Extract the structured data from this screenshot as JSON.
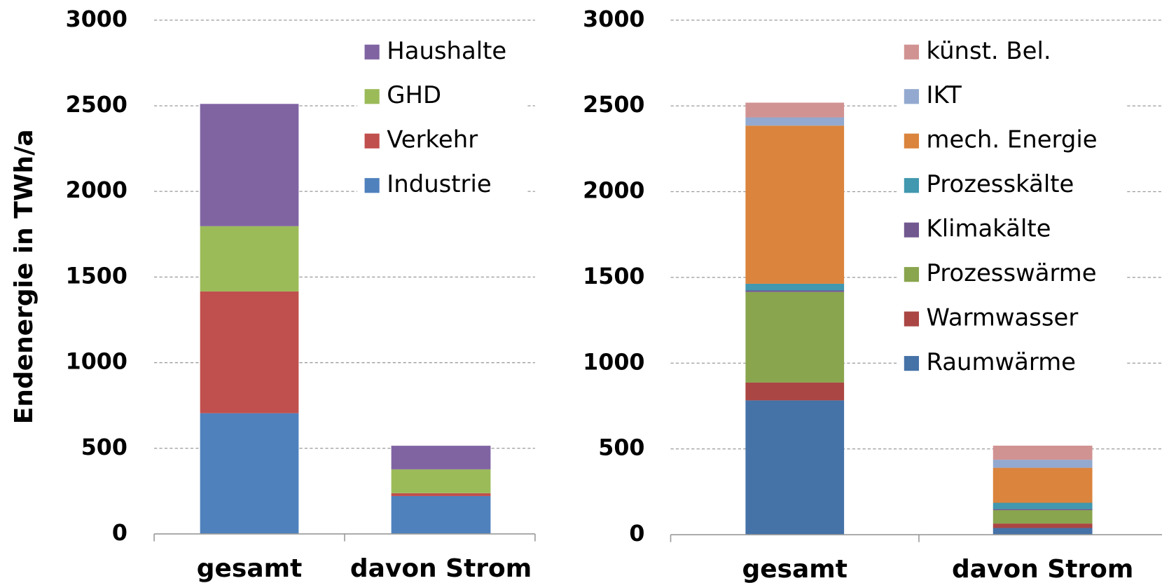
{
  "chart_data": [
    {
      "type": "bar",
      "stacked": true,
      "y_label": "Endenergie in TWh/a",
      "categories": [
        "gesamt",
        "davon Strom"
      ],
      "series": [
        {
          "name": "Industrie",
          "color": "#4f81bd",
          "values": [
            705,
            221
          ]
        },
        {
          "name": "Verkehr",
          "color": "#c0504d",
          "values": [
            711,
            17
          ]
        },
        {
          "name": "GHD",
          "color": "#9bbb59",
          "values": [
            381,
            139
          ]
        },
        {
          "name": "Haushalte",
          "color": "#8064a2",
          "values": [
            714,
            138
          ]
        }
      ],
      "ylim": [
        0,
        3000
      ],
      "yticks": [
        0,
        500,
        1000,
        1500,
        2000,
        2500,
        3000
      ],
      "grid": true,
      "legend": "top-right"
    },
    {
      "type": "bar",
      "stacked": true,
      "categories": [
        "gesamt",
        "davon Strom"
      ],
      "series": [
        {
          "name": "Raumwärme",
          "color": "#4572a7",
          "values": [
            783,
            39
          ]
        },
        {
          "name": "Warmwasser",
          "color": "#aa4643",
          "values": [
            104,
            26
          ]
        },
        {
          "name": "Prozesswärme",
          "color": "#89a54e",
          "values": [
            528,
            78
          ]
        },
        {
          "name": "Klimakälte",
          "color": "#71588f",
          "values": [
            9,
            6
          ]
        },
        {
          "name": "Prozesskälte",
          "color": "#4198af",
          "values": [
            39,
            37
          ]
        },
        {
          "name": "mech. Energie",
          "color": "#db843d",
          "values": [
            922,
            204
          ]
        },
        {
          "name": "IKT",
          "color": "#93a9cf",
          "values": [
            48,
            47
          ]
        },
        {
          "name": "künst. Bel.",
          "color": "#d19392",
          "values": [
            86,
            82
          ]
        }
      ],
      "ylim": [
        0,
        3000
      ],
      "yticks": [
        0,
        500,
        1000,
        1500,
        2000,
        2500,
        3000
      ],
      "grid": true,
      "legend": "top-right"
    }
  ]
}
